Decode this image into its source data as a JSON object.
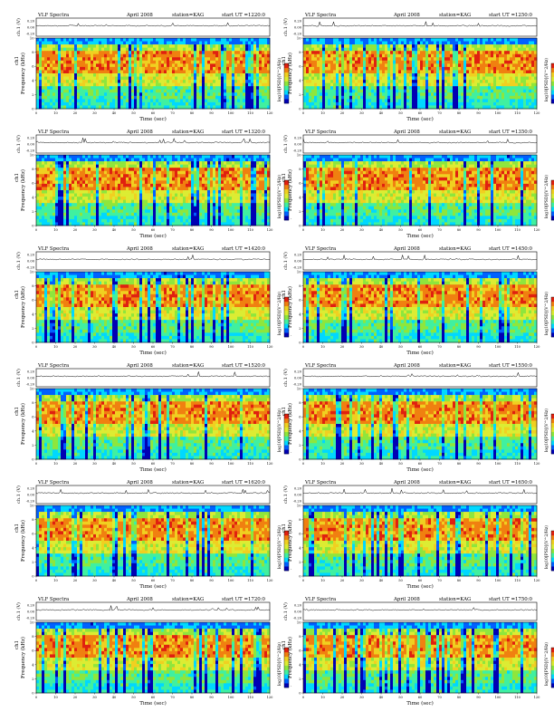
{
  "page": {
    "panels": [
      {
        "title": "VLF Spectra",
        "date": "April 2008",
        "station": "station=KAG",
        "start": "start  UT =1220:0"
      },
      {
        "title": "VLF Spectra",
        "date": "April 2008",
        "station": "station=KAG",
        "start": "start  UT =1250:0"
      },
      {
        "title": "VLF Spectra",
        "date": "April 2008",
        "station": "station=KAG",
        "start": "start  UT =1320:0"
      },
      {
        "title": "VLF Spectra",
        "date": "April 2008",
        "station": "station=KAG",
        "start": "start  UT =1350:0"
      },
      {
        "title": "VLF Spectra",
        "date": "April 2008",
        "station": "station=KAG",
        "start": "start  UT =1420:0"
      },
      {
        "title": "VLF Spectra",
        "date": "April 2008",
        "station": "station=KAG",
        "start": "start  UT =1450:0"
      },
      {
        "title": "VLF Spectra",
        "date": "April 2008",
        "station": "station=KAG",
        "start": "start  UT =1520:0"
      },
      {
        "title": "VLF Spectra",
        "date": "April 2008",
        "station": "station=KAG",
        "start": "start  UT =1550:0"
      },
      {
        "title": "VLF Spectra",
        "date": "April 2008",
        "station": "station=KAG",
        "start": "start  UT =1620:0"
      },
      {
        "title": "VLF Spectra",
        "date": "April 2008",
        "station": "station=KAG",
        "start": "start  UT =1650:0"
      },
      {
        "title": "VLF Spectra",
        "date": "April 2008",
        "station": "station=KAG",
        "start": "start  UT =1720:0"
      },
      {
        "title": "VLF Spectra",
        "date": "April 2008",
        "station": "station=KAG",
        "start": "start  UT =1750:0"
      }
    ]
  },
  "chart_data": {
    "type": "heatmap",
    "xlabel": "Time (sec)",
    "ylabel": "Frequency (kHz)",
    "ylabel_prefix": "ch1",
    "waveform_label": "ch.1 (V)",
    "colorbar_label": "log10[PSD](V^2/Hz)",
    "colorbar_ticks": [
      ".",
      "-"
    ],
    "xlim": [
      0,
      120
    ],
    "x_ticks": [
      "0",
      "10",
      "20",
      "30",
      "40",
      "50",
      "60",
      "70",
      "80",
      "90",
      "100",
      "110",
      "120"
    ],
    "ylim": [
      0,
      10
    ],
    "y_ticks": [
      "0",
      "2",
      "4",
      "6",
      "8",
      "10"
    ],
    "waveform_ticks": [
      "0.20",
      "0.00",
      "-0.20"
    ],
    "colormap": [
      "#0000b4",
      "#0060ff",
      "#00d8ff",
      "#40f0a0",
      "#8ee63c",
      "#dcec32",
      "#f0d020",
      "#f08010",
      "#e02010"
    ],
    "grid": false,
    "layout": "6 rows x 2 columns"
  }
}
